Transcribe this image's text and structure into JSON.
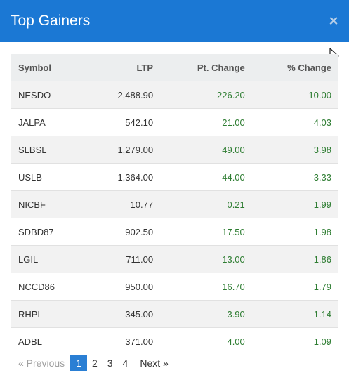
{
  "modal": {
    "title": "Top Gainers",
    "close_label": "×"
  },
  "table": {
    "columns": [
      "Symbol",
      "LTP",
      "Pt. Change",
      "% Change"
    ],
    "rows": [
      [
        "NESDO",
        "2,488.90",
        "226.20",
        "10.00"
      ],
      [
        "JALPA",
        "542.10",
        "21.00",
        "4.03"
      ],
      [
        "SLBSL",
        "1,279.00",
        "49.00",
        "3.98"
      ],
      [
        "USLB",
        "1,364.00",
        "44.00",
        "3.33"
      ],
      [
        "NICBF",
        "10.77",
        "0.21",
        "1.99"
      ],
      [
        "SDBD87",
        "902.50",
        "17.50",
        "1.98"
      ],
      [
        "LGIL",
        "711.00",
        "13.00",
        "1.86"
      ],
      [
        "NCCD86",
        "950.00",
        "16.70",
        "1.79"
      ],
      [
        "RHPL",
        "345.00",
        "3.90",
        "1.14"
      ],
      [
        "ADBL",
        "371.00",
        "4.00",
        "1.09"
      ]
    ]
  },
  "pagination": {
    "previous_label": "«  Previous",
    "pages": [
      "1",
      "2",
      "3",
      "4"
    ],
    "active_page": "1",
    "next_label": "Next  »"
  },
  "colors": {
    "header": "#1b78d4",
    "positive": "#2e7d32",
    "active_page": "#2a7fd4"
  }
}
